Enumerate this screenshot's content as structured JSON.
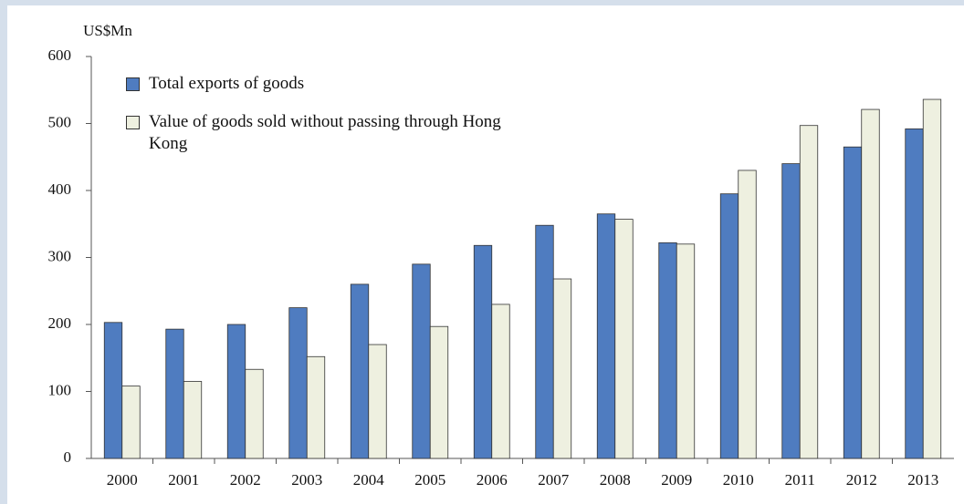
{
  "chart_data": {
    "type": "bar",
    "y_label": "US$Mn",
    "categories": [
      "2000",
      "2001",
      "2002",
      "2003",
      "2004",
      "2005",
      "2006",
      "2007",
      "2008",
      "2009",
      "2010",
      "2011",
      "2012",
      "2013"
    ],
    "series": [
      {
        "name": "Total exports of goods",
        "color": "#4f7cc0",
        "values": [
          203,
          193,
          200,
          225,
          260,
          290,
          318,
          348,
          365,
          322,
          395,
          440,
          465,
          492
        ]
      },
      {
        "name": "Value of goods sold without passing through Hong Kong",
        "color": "#eef0e0",
        "values": [
          108,
          115,
          133,
          152,
          170,
          197,
          230,
          268,
          357,
          320,
          430,
          497,
          521,
          536
        ]
      }
    ],
    "ylim": [
      0,
      600
    ],
    "yticks": [
      0,
      100,
      200,
      300,
      400,
      500,
      600
    ],
    "grid": false,
    "legend": "upper left"
  }
}
